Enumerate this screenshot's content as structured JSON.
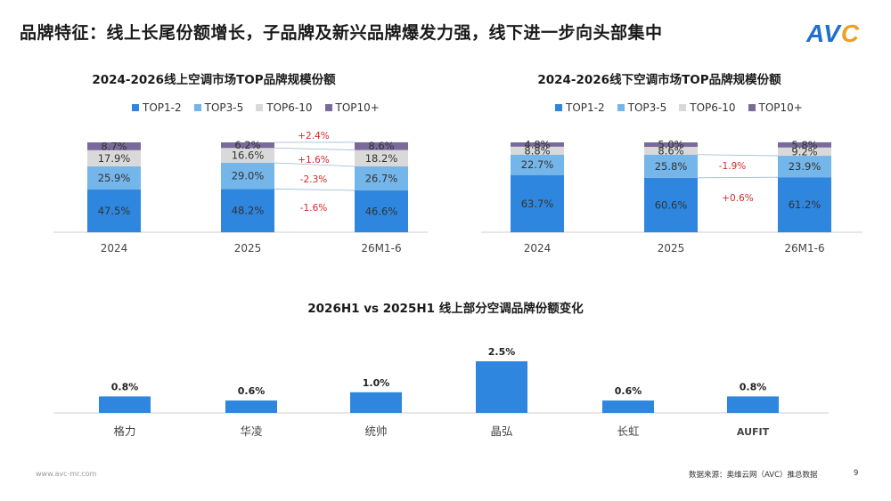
{
  "page": {
    "title": "品牌特征：线上长尾份额增长，子品牌及新兴品牌爆发力强，线下进一步向头部集中",
    "logo_text": "AVC",
    "footer_left": "www.avc-mr.com",
    "source": "数据来源：奥维云网（AVC）推总数据",
    "page_number": "9"
  },
  "colors": {
    "top1_2": "#2e86de",
    "top3_5": "#74b5ea",
    "top6_10": "#d9d9d9",
    "top10_plus": "#7a6a9b",
    "change_red": "#d62828"
  },
  "legend": [
    "TOP1-2",
    "TOP3-5",
    "TOP6-10",
    "TOP10+"
  ],
  "chart_data": [
    {
      "type": "bar",
      "stacked": true,
      "title": "2024-2026线上空调市场TOP品牌规模份额",
      "categories": [
        "2024",
        "2025",
        "26M1-6"
      ],
      "series": [
        {
          "name": "TOP1-2",
          "values": [
            47.5,
            48.2,
            46.6
          ],
          "labels": [
            "47.5%",
            "48.2%",
            "46.6%"
          ]
        },
        {
          "name": "TOP3-5",
          "values": [
            25.9,
            29.0,
            26.7
          ],
          "labels": [
            "25.9%",
            "29.0%",
            "26.7%"
          ]
        },
        {
          "name": "TOP6-10",
          "values": [
            17.9,
            16.6,
            18.2
          ],
          "labels": [
            "17.9%",
            "16.6%",
            "18.2%"
          ]
        },
        {
          "name": "TOP10+",
          "values": [
            8.7,
            6.2,
            8.6
          ],
          "labels": [
            "8.7%",
            "6.2%",
            "8.6%"
          ]
        }
      ],
      "changes": [
        "+2.4%",
        "+1.6%",
        "-2.3%",
        "-1.6%"
      ]
    },
    {
      "type": "bar",
      "stacked": true,
      "title": "2024-2026线下空调市场TOP品牌规模份额",
      "categories": [
        "2024",
        "2025",
        "26M1-6"
      ],
      "series": [
        {
          "name": "TOP1-2",
          "values": [
            63.7,
            60.6,
            61.2
          ],
          "labels": [
            "63.7%",
            "60.6%",
            "61.2%"
          ]
        },
        {
          "name": "TOP3-5",
          "values": [
            22.7,
            25.8,
            23.9
          ],
          "labels": [
            "22.7%",
            "25.8%",
            "23.9%"
          ]
        },
        {
          "name": "TOP6-10",
          "values": [
            8.8,
            8.6,
            9.2
          ],
          "labels": [
            "8.8%",
            "8.6%",
            "9.2%"
          ]
        },
        {
          "name": "TOP10+",
          "values": [
            4.8,
            5.0,
            5.8
          ],
          "labels": [
            "4.8%",
            "5.0%",
            "5.8%"
          ]
        }
      ],
      "changes": [
        "-1.9%",
        "+0.6%"
      ]
    },
    {
      "type": "bar",
      "title": "2026H1 vs 2025H1 线上部分空调品牌份额变化",
      "categories": [
        "格力",
        "华凌",
        "统帅",
        "晶弘",
        "长虹",
        "AUFIT"
      ],
      "values": [
        0.8,
        0.6,
        1.0,
        2.5,
        0.6,
        0.8
      ],
      "labels": [
        "0.8%",
        "0.6%",
        "1.0%",
        "2.5%",
        "0.6%",
        "0.8%"
      ]
    }
  ]
}
